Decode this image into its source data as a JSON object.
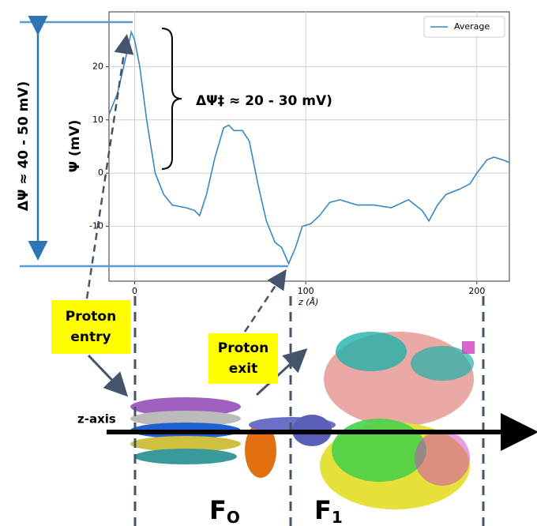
{
  "chart_data": {
    "type": "line",
    "xlabel": "z (Å)",
    "ylabel": "Ψ  (mV)",
    "x": [
      -15,
      -10,
      -5,
      -2,
      0,
      3,
      7,
      12,
      17,
      22,
      30,
      35,
      38,
      42,
      47,
      52,
      55,
      58,
      63,
      67,
      72,
      77,
      82,
      86,
      90,
      94,
      98,
      103,
      108,
      114,
      120,
      130,
      140,
      150,
      160,
      168,
      172,
      177,
      182,
      190,
      196,
      200,
      206,
      210,
      215,
      219
    ],
    "series": [
      {
        "name": "Average",
        "color": "#3a86c0",
        "values": [
          11,
          15,
          22,
          26.5,
          25,
          20,
          10,
          0,
          -4,
          -6,
          -6.5,
          -7,
          -8,
          -4,
          3,
          8.5,
          9,
          8,
          8,
          6,
          -2,
          -9,
          -13,
          -14,
          -17,
          -14,
          -10,
          -9.5,
          -8,
          -5.5,
          -5,
          -6,
          -6,
          -6.5,
          -5,
          -7,
          -9,
          -6,
          -4,
          -3,
          -2,
          0,
          2.5,
          3,
          2.5,
          2
        ]
      }
    ],
    "xlim": [
      -15,
      219
    ],
    "ylim": [
      -20.3,
      30.3
    ],
    "xticks": [
      0,
      100,
      200
    ],
    "yticks": [
      -10,
      0,
      10,
      20
    ],
    "grid": true,
    "legend": "upper right",
    "annotations": {
      "total_drop": "ΔΨ  ≈ 40 - 50 mV)",
      "barrier": "ΔΨ‡ ≈ 20 - 30 mV)",
      "entry": "Proton entry",
      "exit": "Proton exit",
      "axis": "z-axis",
      "fo_main": "F",
      "fo_sub": "O",
      "f1_main": "F",
      "f1_sub": "1"
    }
  }
}
